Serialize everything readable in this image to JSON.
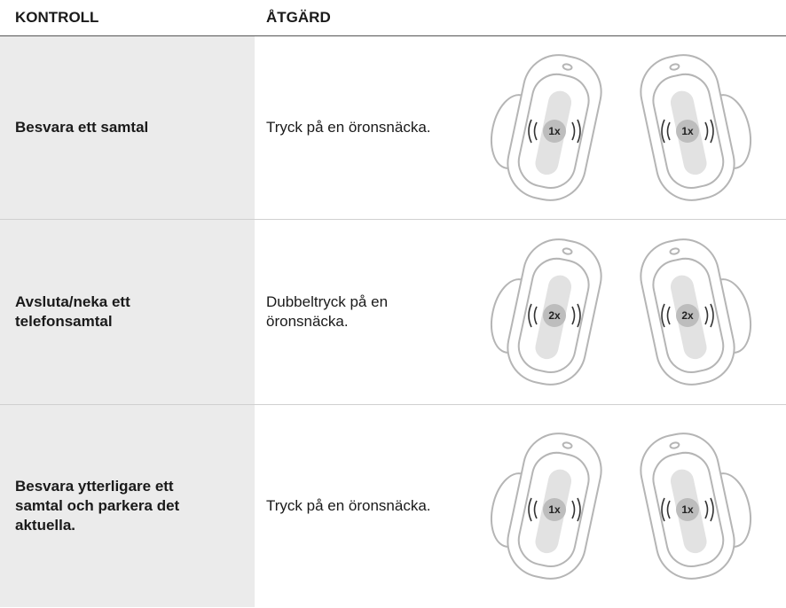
{
  "header": {
    "columns": [
      "KONTROLL",
      "ÅTGÄRD"
    ]
  },
  "table": {
    "rows": [
      {
        "control": "Besvara ett samtal",
        "action": "Tryck på en öronsnäcka.",
        "tap": "1x"
      },
      {
        "control": "Avsluta/neka ett telefonsamtal",
        "action": "Dubbeltryck på en öronsnäcka.",
        "tap": "2x"
      },
      {
        "control": "Besvara ytterligare ett samtal och parkera det aktuella.",
        "action": "Tryck på en öronsnäcka.",
        "tap": "1x"
      }
    ]
  }
}
